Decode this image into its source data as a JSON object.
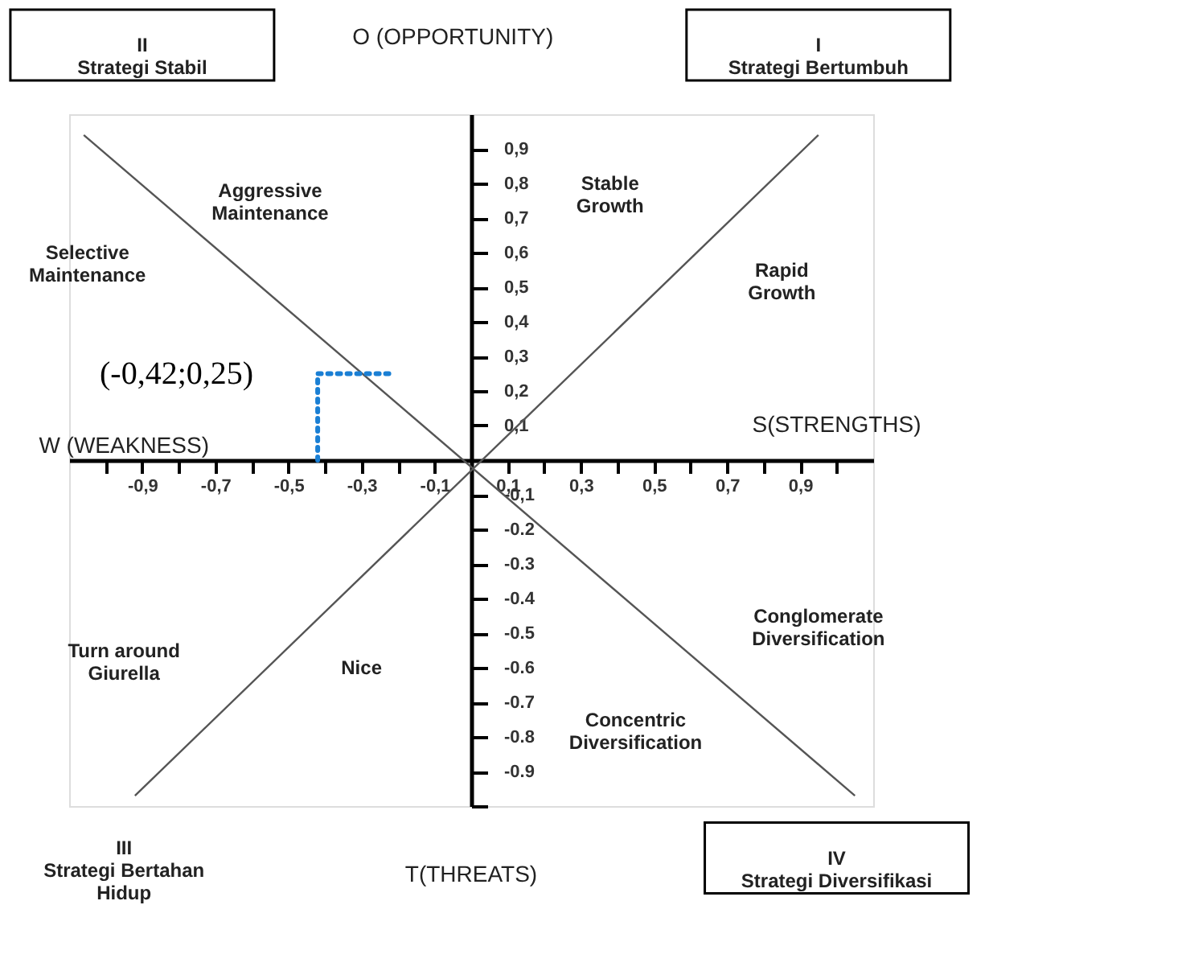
{
  "chart_data": {
    "type": "line",
    "xlim": [
      -1.1,
      1.1
    ],
    "ylim": [
      -1.0,
      1.0
    ],
    "xticks": [
      {
        "value": -1.0,
        "label": null
      },
      {
        "value": -0.9,
        "label": "-0,9"
      },
      {
        "value": -0.8,
        "label": null
      },
      {
        "value": -0.7,
        "label": "-0,7"
      },
      {
        "value": -0.6,
        "label": null
      },
      {
        "value": -0.5,
        "label": "-0,5"
      },
      {
        "value": -0.4,
        "label": null
      },
      {
        "value": -0.3,
        "label": "-0,3"
      },
      {
        "value": -0.2,
        "label": null
      },
      {
        "value": -0.1,
        "label": "-0,1"
      },
      {
        "value": 0.1,
        "label": "0,1"
      },
      {
        "value": 0.2,
        "label": null
      },
      {
        "value": 0.3,
        "label": "0,3"
      },
      {
        "value": 0.4,
        "label": null
      },
      {
        "value": 0.5,
        "label": "0,5"
      },
      {
        "value": 0.6,
        "label": null
      },
      {
        "value": 0.7,
        "label": "0,7"
      },
      {
        "value": 0.8,
        "label": null
      },
      {
        "value": 0.9,
        "label": "0,9"
      },
      {
        "value": 1.0,
        "label": null
      }
    ],
    "yticks": [
      {
        "value": 0.9,
        "label": "0,9"
      },
      {
        "value": 0.8,
        "label": "0,8"
      },
      {
        "value": 0.7,
        "label": "0,7"
      },
      {
        "value": 0.6,
        "label": "0,6"
      },
      {
        "value": 0.5,
        "label": "0,5"
      },
      {
        "value": 0.4,
        "label": "0,4"
      },
      {
        "value": 0.3,
        "label": "0,3"
      },
      {
        "value": 0.2,
        "label": "0,2"
      },
      {
        "value": 0.1,
        "label": "0,1"
      },
      {
        "value": -0.1,
        "label": "-0,1"
      },
      {
        "value": -0.2,
        "label": "-0.2"
      },
      {
        "value": -0.3,
        "label": "-0.3"
      },
      {
        "value": -0.4,
        "label": "-0.4"
      },
      {
        "value": -0.5,
        "label": "-0.5"
      },
      {
        "value": -0.6,
        "label": "-0.6"
      },
      {
        "value": -0.7,
        "label": "-0.7"
      },
      {
        "value": -0.8,
        "label": "-0.8"
      },
      {
        "value": -0.9,
        "label": "-0.9"
      },
      {
        "value": -1.0,
        "label": null
      }
    ],
    "grid": false,
    "series": [
      {
        "color": "#555555",
        "x": [
          -1.06,
          1.05
        ],
        "values": [
          0.94,
          -0.97
        ]
      },
      {
        "color": "#555555",
        "x": [
          -0.92,
          0.95
        ],
        "values": [
          -0.97,
          0.94
        ]
      },
      {
        "color": "#1a7fd4",
        "line_style": "dotted",
        "x": [
          -0.42,
          -0.42,
          -0.22
        ],
        "values": [
          0,
          0.25,
          0.25
        ]
      }
    ],
    "annotations": [
      "II\nStrategi Stabil",
      "O (OPPORTUNITY)",
      "I\nStrategi Bertumbuh",
      "Aggressive\nMaintenance",
      "Stable\nGrowth",
      "Selective\nMaintenance",
      "Rapid\nGrowth",
      "W (WEAKNESS)",
      "S(STRENGTHS)",
      "Conglomerate\nDiversification",
      "Turn around\nGiurella",
      "Nice",
      "Concentric\nDiversification",
      "III\nStrategi Bertahan\nHidup",
      "IV\nStrategi Diversifikasi",
      "T(THREATS)",
      {
        "text": "(-0,42;0,25)",
        "x": -0.42,
        "y": 0.25
      }
    ]
  }
}
